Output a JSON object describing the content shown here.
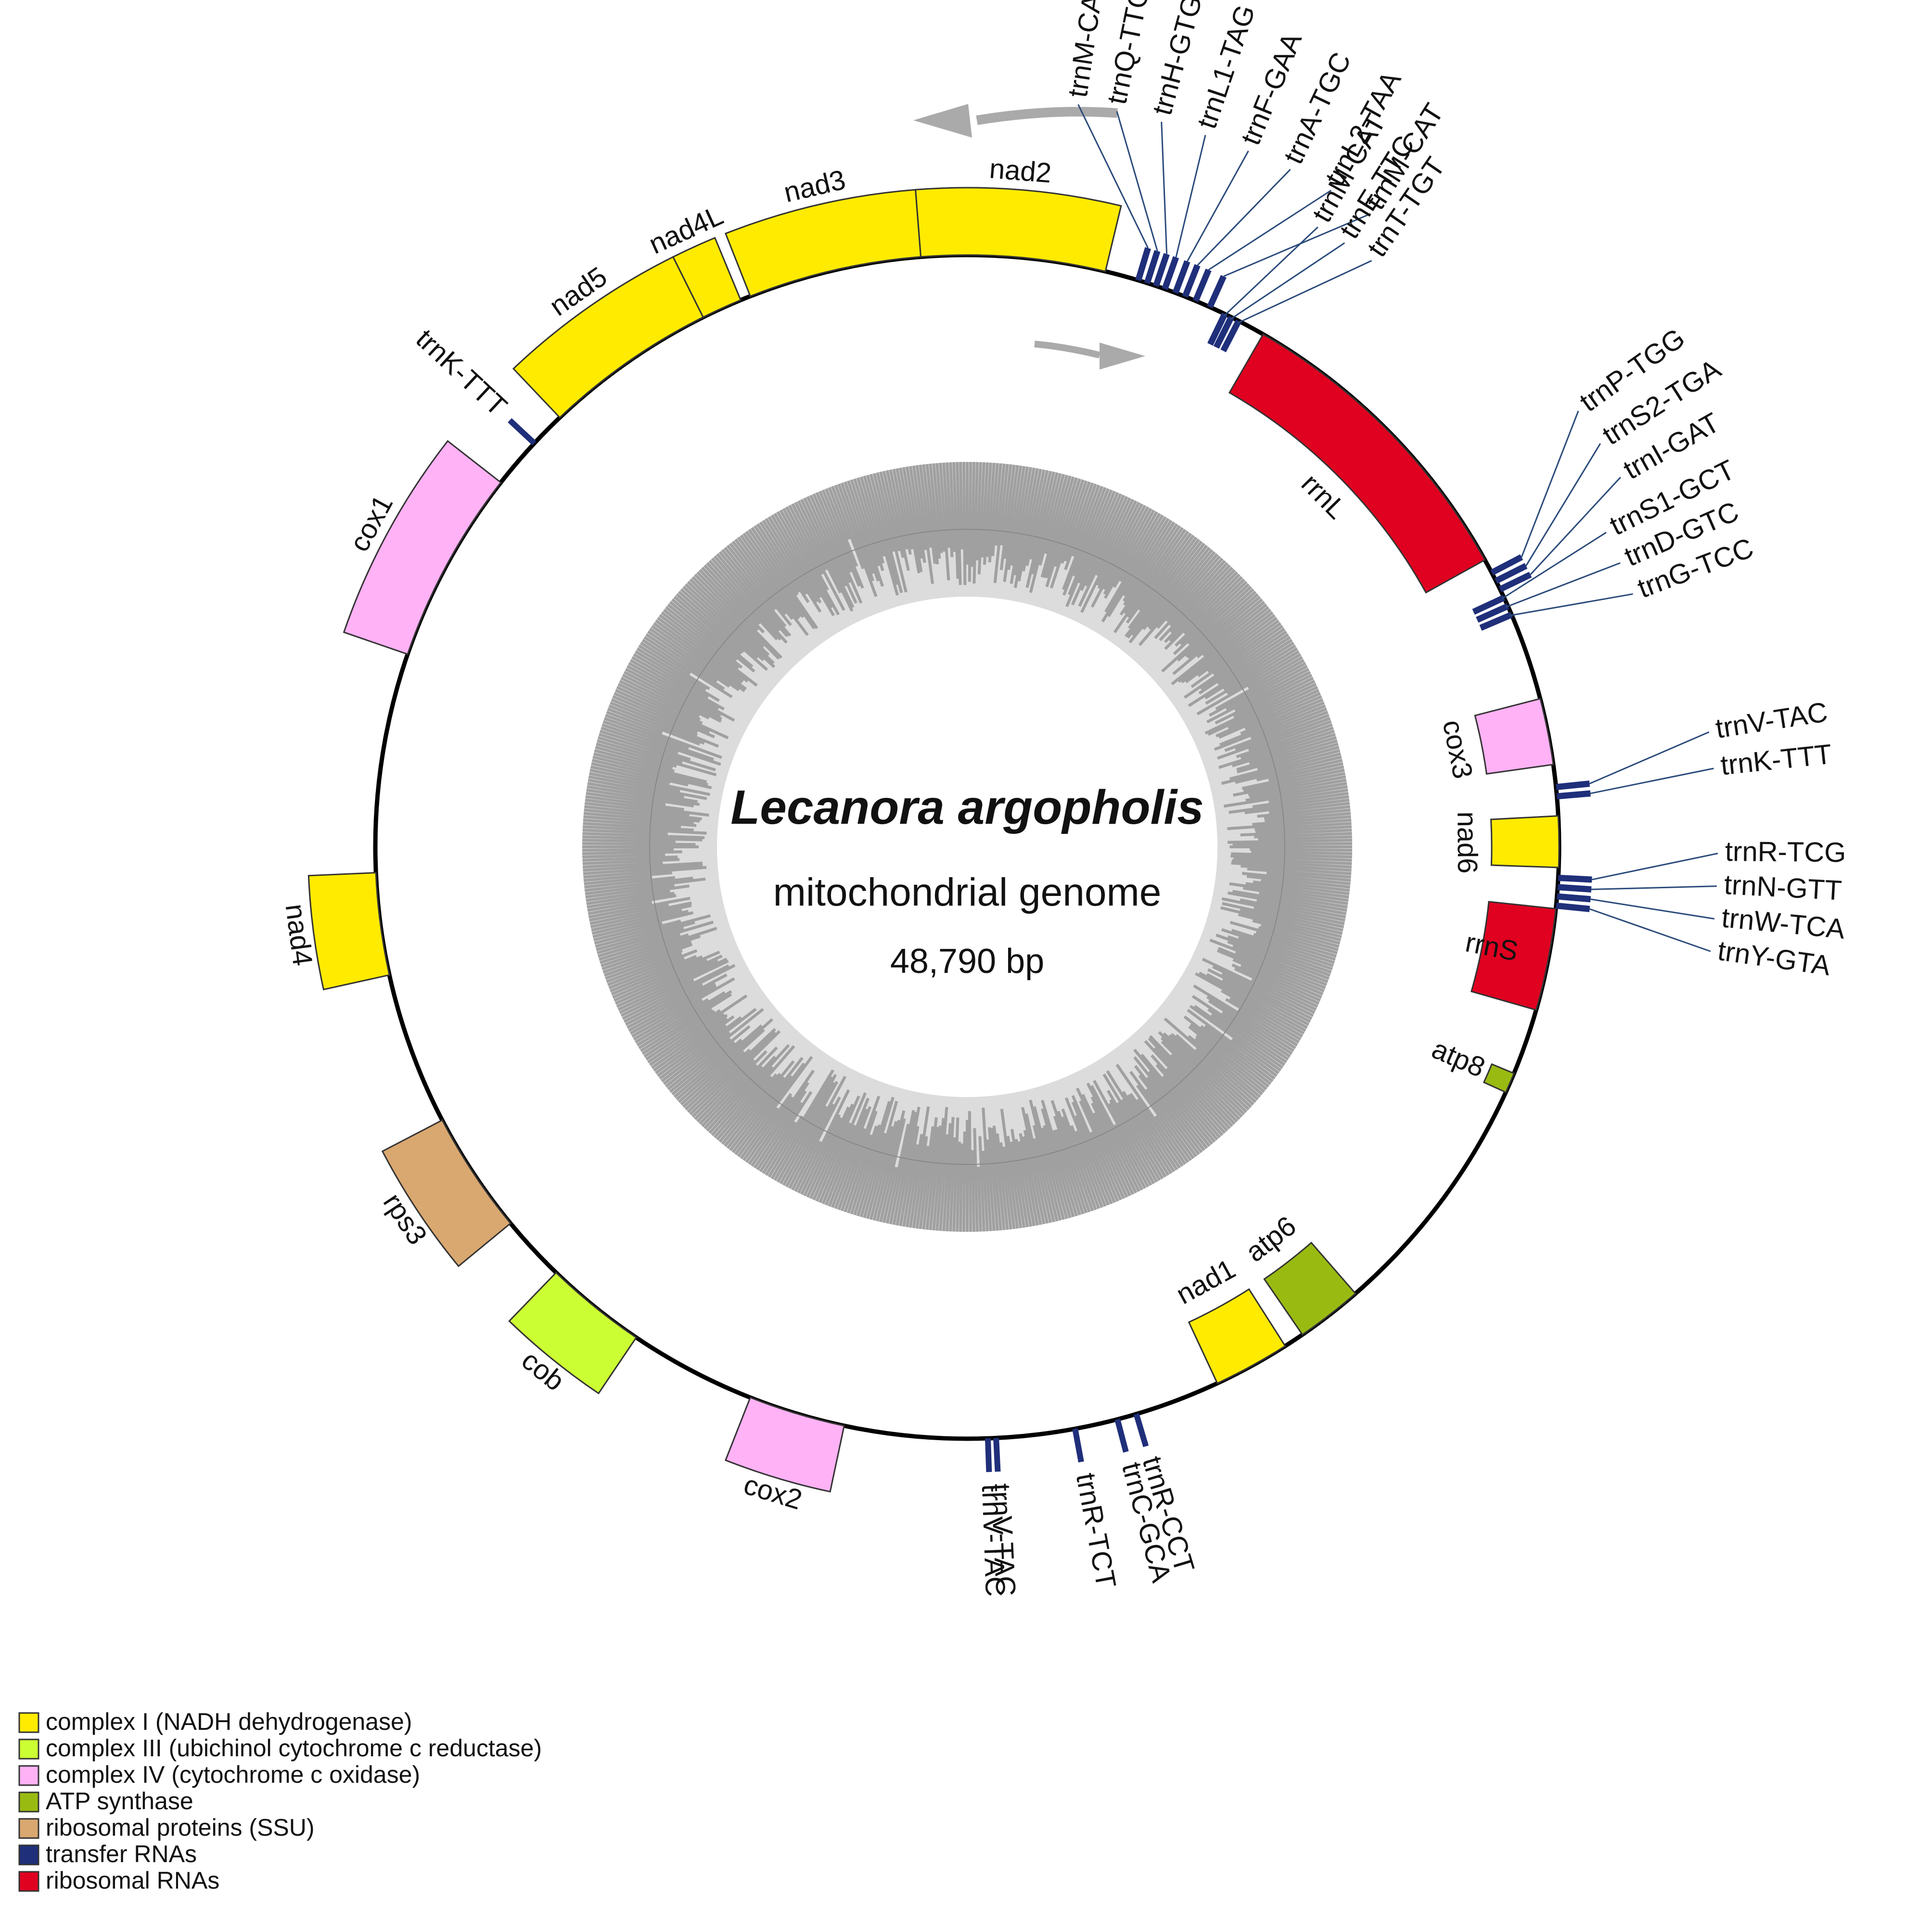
{
  "title": "Lecanora argopholis",
  "subtitle": "mitochondrial genome",
  "length_label": "48,790 bp",
  "categories": {
    "c1": {
      "label": "complex I (NADH dehydrogenase)",
      "color": "#FFEB00"
    },
    "c3": {
      "label": "complex III (ubichinol cytochrome c reductase)",
      "color": "#CCFF33"
    },
    "c4": {
      "label": "complex IV (cytochrome c oxidase)",
      "color": "#FFB2F5"
    },
    "atp": {
      "label": "ATP synthase",
      "color": "#99BB11"
    },
    "rps": {
      "label": "ribosomal proteins (SSU)",
      "color": "#D9A870"
    },
    "trna": {
      "label": "transfer RNAs",
      "color": "#1F2F7A"
    },
    "rrna": {
      "label": "ribosomal RNAs",
      "color": "#E00020"
    }
  },
  "legend_order": [
    "c1",
    "c3",
    "c4",
    "atp",
    "rps",
    "trna",
    "rrna"
  ],
  "genes": [
    {
      "name": "nad2",
      "cat": "c1",
      "strand": "out",
      "a0": -4.5,
      "a1": 13.5
    },
    {
      "name": "nad3",
      "cat": "c1",
      "strand": "out",
      "a0": -21.5,
      "a1": -4.5
    },
    {
      "name": "nad4L",
      "cat": "c1",
      "strand": "out",
      "a0": -26.5,
      "a1": -22.5
    },
    {
      "name": "nad5",
      "cat": "c1",
      "strand": "out",
      "a0": -43.5,
      "a1": -26.5
    },
    {
      "name": "trnK-TTT",
      "cat": "trna",
      "strand": "out",
      "a0": -47.0,
      "a1": -46.0,
      "single": true
    },
    {
      "name": "cox1",
      "cat": "c4",
      "strand": "out",
      "a0": -71.0,
      "a1": -52.0
    },
    {
      "name": "nad4",
      "cat": "c1",
      "strand": "out",
      "a0": -102.5,
      "a1": -92.5
    },
    {
      "name": "rps3",
      "cat": "rps",
      "strand": "out",
      "a0": -129.5,
      "a1": -117.5
    },
    {
      "name": "cob",
      "cat": "c3",
      "strand": "out",
      "a0": -146.0,
      "a1": -136.0
    },
    {
      "name": "cox2",
      "cat": "c4",
      "strand": "out",
      "a0": -168.0,
      "a1": -158.5
    },
    {
      "name": "trnV-TAC",
      "cat": "trna",
      "strand": "out",
      "a0": 178.0,
      "a1": 178.0,
      "single": true
    },
    {
      "name": "trnV-TAC",
      "cat": "trna",
      "strand": "out",
      "a0": 177.2,
      "a1": 177.2,
      "single": true
    },
    {
      "name": "trnR-TCT",
      "cat": "trna",
      "strand": "out",
      "a0": 169.5,
      "a1": 169.5,
      "single": true
    },
    {
      "name": "trnC-GCA",
      "cat": "trna",
      "strand": "out",
      "a0": 165.3,
      "a1": 165.3,
      "single": true
    },
    {
      "name": "trnR-CCT",
      "cat": "trna",
      "strand": "out",
      "a0": 163.4,
      "a1": 163.4,
      "single": true
    },
    {
      "name": "nad1",
      "cat": "c1",
      "strand": "in",
      "a0": 147.5,
      "a1": 155.0
    },
    {
      "name": "atp6",
      "cat": "atp",
      "strand": "in",
      "a0": 139.0,
      "a1": 145.5
    },
    {
      "name": "atp8",
      "cat": "atp",
      "strand": "in",
      "a0": 112.5,
      "a1": 114.5
    },
    {
      "name": "rrnS",
      "cat": "rrna",
      "strand": "in",
      "a0": 96.0,
      "a1": 106.0
    },
    {
      "name": "nad6",
      "cat": "c1",
      "strand": "in",
      "a0": 87.0,
      "a1": 92.0
    },
    {
      "name": "cox3",
      "cat": "c4",
      "strand": "in",
      "a0": 75.5,
      "a1": 82.0
    },
    {
      "name": "rrnL",
      "cat": "rrna",
      "strand": "in",
      "a0": 30.0,
      "a1": 61.0
    }
  ],
  "trna_clusters": [
    {
      "strand": "out",
      "items": [
        {
          "name": "trnM-CAT",
          "a": 16.8,
          "la": 8.5
        },
        {
          "name": "trnQ-TTG",
          "a": 17.7,
          "la": 11.5
        },
        {
          "name": "trnH-GTG",
          "a": 18.6,
          "la": 15.0
        },
        {
          "name": "trnL1-TAG",
          "a": 19.5,
          "la": 18.5
        },
        {
          "name": "trnF-GAA",
          "a": 20.6,
          "la": 22.0
        },
        {
          "name": "trnA-TGC",
          "a": 21.6,
          "la": 25.5
        },
        {
          "name": "trnL2-TAA",
          "a": 22.7,
          "la": 29.0
        },
        {
          "name": "trnM-CAT",
          "a": 24.2,
          "la": 32.5
        }
      ]
    },
    {
      "strand": "in",
      "items": [
        {
          "name": "trnM-CAT",
          "a": 25.8,
          "la": 29.5
        },
        {
          "name": "trnE-TTC",
          "a": 26.5,
          "la": 32.0
        },
        {
          "name": "trnT-TGT",
          "a": 27.3,
          "la": 34.6
        }
      ]
    },
    {
      "strand": "out",
      "items": [
        {
          "name": "trnP-TGG",
          "a": 62.4,
          "la": 54.5
        },
        {
          "name": "trnS2-TGA",
          "a": 63.3,
          "la": 57.5
        },
        {
          "name": "trnI-GAT",
          "a": 64.2,
          "la": 60.5
        }
      ]
    },
    {
      "strand": "in",
      "items": [
        {
          "name": "trnS1-GCT",
          "a": 65.1,
          "la": 63.8
        },
        {
          "name": "trnD-GTC",
          "a": 66.0,
          "la": 66.5
        },
        {
          "name": "trnG-TCC",
          "a": 66.9,
          "la": 69.2
        }
      ]
    },
    {
      "strand": "out",
      "items": [
        {
          "name": "trnV-TAC",
          "a": 84.2,
          "la": 81.2
        },
        {
          "name": "trnK-TTT",
          "a": 85.1,
          "la": 84.0
        }
      ]
    },
    {
      "strand": "out",
      "items": [
        {
          "name": "trnR-TCG",
          "a": 93.0,
          "la": 90.5
        },
        {
          "name": "trnN-GTT",
          "a": 93.9,
          "la": 93.0
        },
        {
          "name": "trnW-TCA",
          "a": 94.8,
          "la": 95.5
        },
        {
          "name": "trnY-GTA",
          "a": 95.7,
          "la": 98.0
        }
      ]
    }
  ],
  "gc_profile": {
    "bars": 720,
    "color": "#a0a0a0",
    "background": "#dcdcdc"
  }
}
